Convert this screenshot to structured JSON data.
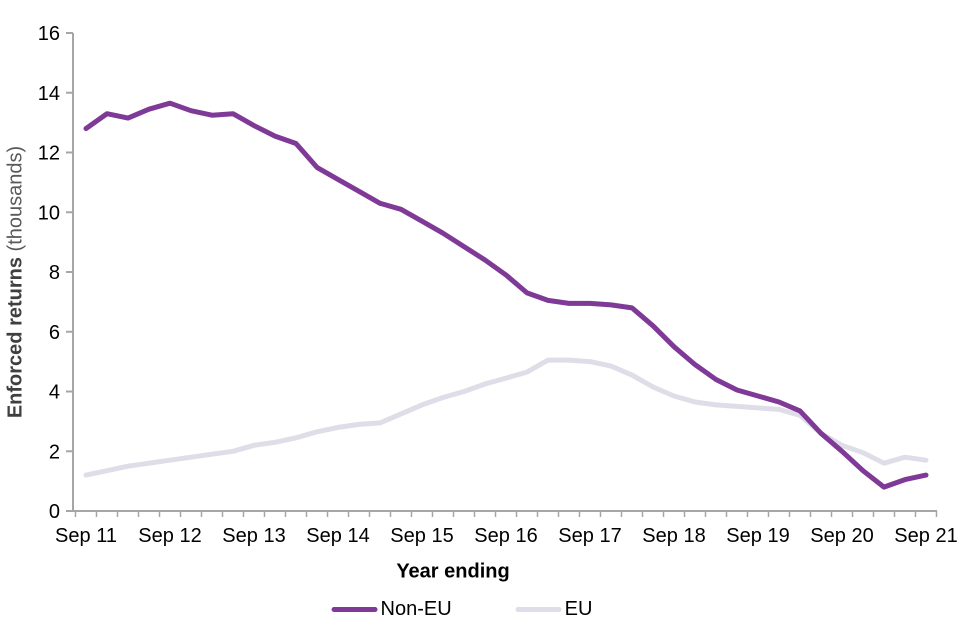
{
  "chart_data": {
    "type": "line",
    "xlabel": "Year ending",
    "ylabel_bold": "Enforced returns",
    "ylabel_note": "(thousands)",
    "ylim": [
      0,
      16
    ],
    "y_ticks": [
      0,
      2,
      4,
      6,
      8,
      10,
      12,
      14,
      16
    ],
    "x_tick_labels": [
      "Sep 11",
      "Sep 12",
      "Sep 13",
      "Sep 14",
      "Sep 15",
      "Sep 16",
      "Sep 17",
      "Sep 18",
      "Sep 19",
      "Sep 20",
      "Sep 21"
    ],
    "grid": false,
    "legend_position": "bottom",
    "axis_color": "#A6A6A6",
    "categories": [
      "Sep 11",
      "Dec 11",
      "Mar 12",
      "Jun 12",
      "Sep 12",
      "Dec 12",
      "Mar 13",
      "Jun 13",
      "Sep 13",
      "Dec 13",
      "Mar 14",
      "Jun 14",
      "Sep 14",
      "Dec 14",
      "Mar 15",
      "Jun 15",
      "Sep 15",
      "Dec 15",
      "Mar 16",
      "Jun 16",
      "Sep 16",
      "Dec 16",
      "Mar 17",
      "Jun 17",
      "Sep 17",
      "Dec 17",
      "Mar 18",
      "Jun 18",
      "Sep 18",
      "Dec 18",
      "Mar 19",
      "Jun 19",
      "Sep 19",
      "Dec 19",
      "Mar 20",
      "Jun 20",
      "Sep 20",
      "Dec 20",
      "Mar 21",
      "Jun 21",
      "Sep 21"
    ],
    "series": [
      {
        "name": "Non-EU",
        "color": "#7E3A96",
        "values": [
          12.8,
          13.3,
          13.15,
          13.45,
          13.65,
          13.4,
          13.25,
          13.3,
          12.9,
          12.55,
          12.3,
          11.5,
          11.1,
          10.7,
          10.3,
          10.1,
          9.7,
          9.3,
          8.85,
          8.4,
          7.9,
          7.3,
          7.05,
          6.95,
          6.95,
          6.9,
          6.8,
          6.2,
          5.5,
          4.9,
          4.4,
          4.05,
          3.85,
          3.65,
          3.35,
          2.6,
          2.0,
          1.35,
          0.8,
          1.05,
          1.2
        ]
      },
      {
        "name": "EU",
        "color": "#DFDDE8",
        "values": [
          1.2,
          1.35,
          1.5,
          1.6,
          1.7,
          1.8,
          1.9,
          2.0,
          2.2,
          2.3,
          2.45,
          2.65,
          2.8,
          2.9,
          2.95,
          3.25,
          3.55,
          3.8,
          4.0,
          4.25,
          4.45,
          4.65,
          5.05,
          5.05,
          5.0,
          4.85,
          4.55,
          4.15,
          3.85,
          3.65,
          3.55,
          3.5,
          3.45,
          3.4,
          3.2,
          2.6,
          2.2,
          1.95,
          1.6,
          1.8,
          1.7
        ]
      }
    ],
    "legend": [
      {
        "label": "Non-EU",
        "color": "#7E3A96"
      },
      {
        "label": "EU",
        "color": "#DFDDE8"
      }
    ]
  }
}
